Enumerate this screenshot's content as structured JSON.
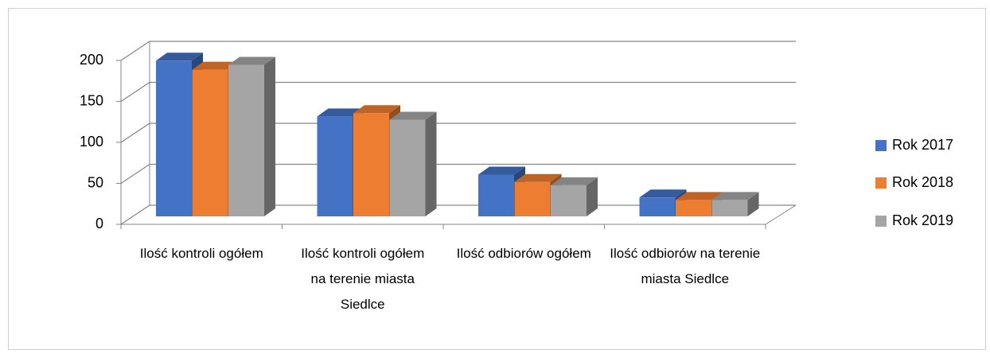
{
  "chart_data": {
    "type": "bar3d",
    "categories": [
      "Ilość kontroli ogółem",
      "Ilość kontroli ogółem na terenie miasta Siedlce",
      "Ilość odbiorów ogółem",
      "Ilość odbiorów na terenie miasta Siedlce"
    ],
    "series": [
      {
        "name": "Rok 2017",
        "color": "#4472c4",
        "values": [
          190,
          122,
          51,
          23
        ]
      },
      {
        "name": "Rok 2018",
        "color": "#ed7d31",
        "values": [
          179,
          126,
          42,
          20
        ]
      },
      {
        "name": "Rok 2019",
        "color": "#a5a5a5",
        "values": [
          185,
          118,
          38,
          20
        ]
      }
    ],
    "ylim": [
      0,
      200
    ],
    "yticks": [
      0,
      50,
      100,
      150,
      200
    ],
    "grid": true,
    "legend": "right"
  }
}
